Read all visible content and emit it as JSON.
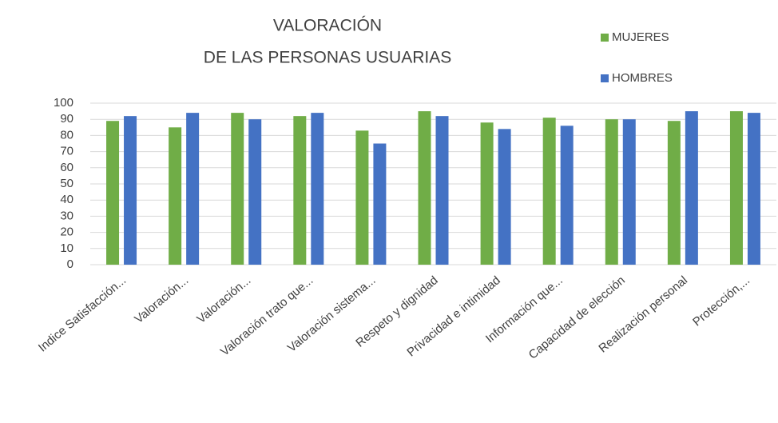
{
  "chart_data": {
    "type": "bar",
    "title": [
      "VALORACIÓN",
      "DE LAS PERSONAS USUARIAS"
    ],
    "categories": [
      "Indice Satisfacción...",
      "Valoración...",
      "Valoración...",
      "Valoración trato que...",
      "Valoración sistema...",
      "Respeto y dignidad",
      "Privacidad e intimidad",
      "Información que...",
      "Capacidad de elección",
      "Realización personal",
      "Protección,..."
    ],
    "series": [
      {
        "name": "MUJERES",
        "color": "#70ad47",
        "values": [
          89,
          85,
          94,
          92,
          83,
          95,
          88,
          91,
          90,
          89,
          95
        ]
      },
      {
        "name": "HOMBRES",
        "color": "#4472c4",
        "values": [
          92,
          94,
          90,
          94,
          75,
          92,
          84,
          86,
          90,
          95,
          94
        ]
      }
    ],
    "ylim": [
      0,
      100
    ],
    "yticks": [
      0,
      10,
      20,
      30,
      40,
      50,
      60,
      70,
      80,
      90,
      100
    ],
    "grid": true,
    "legend": "top-right"
  }
}
